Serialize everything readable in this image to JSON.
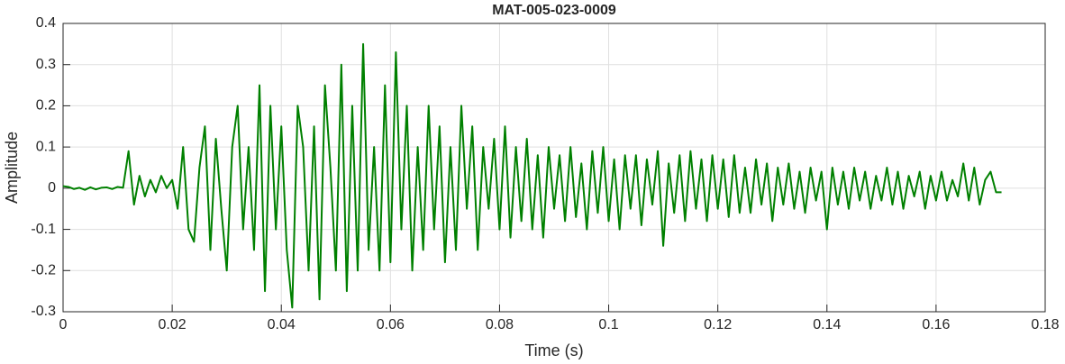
{
  "chart_data": {
    "type": "line",
    "title": "MAT-005-023-0009",
    "x_label": "Time (s)",
    "y_label": "Amplitude",
    "color": "#008000",
    "grid": true,
    "xlim": [
      0,
      0.18
    ],
    "ylim": [
      -0.3,
      0.4
    ],
    "xticks": [
      0,
      0.02,
      0.04,
      0.06,
      0.08,
      0.1,
      0.12,
      0.14,
      0.16,
      0.18
    ],
    "yticks": [
      -0.3,
      -0.2,
      -0.1,
      0,
      0.1,
      0.2,
      0.3,
      0.4
    ],
    "x": [
      0,
      0.001,
      0.002,
      0.003,
      0.004,
      0.005,
      0.006,
      0.007,
      0.008,
      0.009,
      0.01,
      0.011,
      0.012,
      0.013,
      0.014,
      0.015,
      0.016,
      0.017,
      0.018,
      0.019,
      0.02,
      0.021,
      0.022,
      0.023,
      0.024,
      0.025,
      0.026,
      0.027,
      0.028,
      0.029,
      0.03,
      0.031,
      0.032,
      0.033,
      0.034,
      0.035,
      0.036,
      0.037,
      0.038,
      0.039,
      0.04,
      0.041,
      0.042,
      0.043,
      0.044,
      0.045,
      0.046,
      0.047,
      0.048,
      0.049,
      0.05,
      0.051,
      0.052,
      0.053,
      0.054,
      0.055,
      0.056,
      0.057,
      0.058,
      0.059,
      0.06,
      0.061,
      0.062,
      0.063,
      0.064,
      0.065,
      0.066,
      0.067,
      0.068,
      0.069,
      0.07,
      0.071,
      0.072,
      0.073,
      0.074,
      0.075,
      0.076,
      0.077,
      0.078,
      0.079,
      0.08,
      0.081,
      0.082,
      0.083,
      0.084,
      0.085,
      0.086,
      0.087,
      0.088,
      0.089,
      0.09,
      0.091,
      0.092,
      0.093,
      0.094,
      0.095,
      0.096,
      0.097,
      0.098,
      0.099,
      0.1,
      0.101,
      0.102,
      0.103,
      0.104,
      0.105,
      0.106,
      0.107,
      0.108,
      0.109,
      0.11,
      0.111,
      0.112,
      0.113,
      0.114,
      0.115,
      0.116,
      0.117,
      0.118,
      0.119,
      0.12,
      0.121,
      0.122,
      0.123,
      0.124,
      0.125,
      0.126,
      0.127,
      0.128,
      0.129,
      0.13,
      0.131,
      0.132,
      0.133,
      0.134,
      0.135,
      0.136,
      0.137,
      0.138,
      0.139,
      0.14,
      0.141,
      0.142,
      0.143,
      0.144,
      0.145,
      0.146,
      0.147,
      0.148,
      0.149,
      0.15,
      0.151,
      0.152,
      0.153,
      0.154,
      0.155,
      0.156,
      0.157,
      0.158,
      0.159,
      0.16,
      0.161,
      0.162,
      0.163,
      0.164,
      0.165,
      0.166,
      0.167,
      0.168,
      0.169,
      0.17,
      0.171,
      0.172
    ],
    "values": [
      0.005,
      0.003,
      -0.002,
      0.001,
      -0.004,
      0.002,
      -0.003,
      0.001,
      0.002,
      -0.002,
      0.003,
      0.001,
      0.09,
      -0.04,
      0.03,
      -0.02,
      0.02,
      -0.01,
      0.03,
      0,
      0.02,
      -0.05,
      0.1,
      -0.1,
      -0.13,
      0.05,
      0.15,
      -0.15,
      0.12,
      -0.05,
      -0.2,
      0.1,
      0.2,
      -0.1,
      0.1,
      -0.15,
      0.25,
      -0.25,
      0.2,
      -0.1,
      0.15,
      -0.15,
      -0.29,
      0.2,
      0.1,
      -0.2,
      0.15,
      -0.27,
      0.25,
      0.05,
      -0.2,
      0.3,
      -0.25,
      0.2,
      -0.2,
      0.35,
      -0.15,
      0.1,
      -0.2,
      0.25,
      -0.18,
      0.33,
      -0.1,
      0.2,
      -0.2,
      0.1,
      -0.15,
      0.2,
      -0.1,
      0.15,
      -0.18,
      0.1,
      -0.15,
      0.2,
      -0.05,
      0.15,
      -0.15,
      0.1,
      -0.05,
      0.12,
      -0.1,
      0.15,
      -0.12,
      0.1,
      -0.08,
      0.12,
      -0.1,
      0.08,
      -0.12,
      0.1,
      -0.05,
      0.08,
      -0.08,
      0.1,
      -0.07,
      0.06,
      -0.1,
      0.09,
      -0.06,
      0.1,
      -0.08,
      0.07,
      -0.1,
      0.08,
      -0.05,
      0.08,
      -0.09,
      0.07,
      -0.04,
      0.09,
      -0.14,
      0.06,
      -0.06,
      0.08,
      -0.08,
      0.09,
      -0.05,
      0.07,
      -0.08,
      0.08,
      -0.05,
      0.07,
      -0.07,
      0.08,
      -0.06,
      0.05,
      -0.06,
      0.07,
      -0.04,
      0.06,
      -0.08,
      0.05,
      -0.04,
      0.06,
      -0.05,
      0.04,
      -0.06,
      0.05,
      -0.03,
      0.04,
      -0.1,
      0.05,
      -0.04,
      0.04,
      -0.05,
      0.05,
      -0.03,
      0.04,
      -0.05,
      0.03,
      -0.03,
      0.05,
      -0.04,
      0.04,
      -0.05,
      0.03,
      -0.02,
      0.04,
      -0.05,
      0.03,
      -0.03,
      0.04,
      -0.03,
      0.02,
      -0.02,
      0.06,
      -0.03,
      0.05,
      -0.04,
      0.02,
      0.04,
      -0.01,
      -0.01
    ]
  }
}
